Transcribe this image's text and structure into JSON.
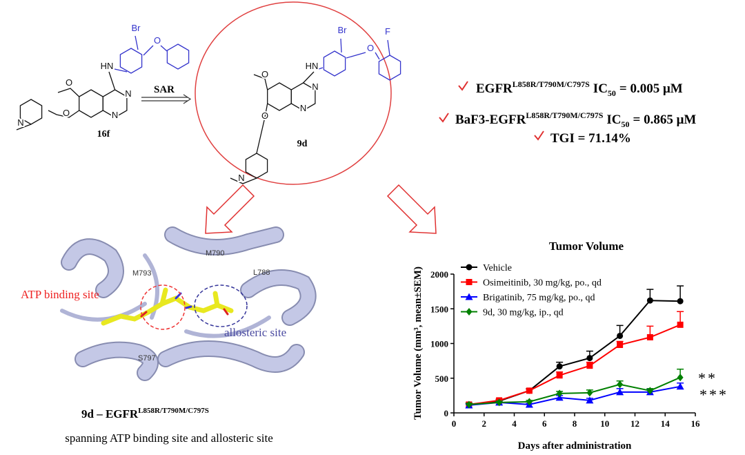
{
  "scheme": {
    "lead": {
      "label": "16f",
      "atoms": [
        "Br",
        "O",
        "HN",
        "N",
        "N",
        "O",
        "O",
        "N"
      ]
    },
    "arrow_label": "SAR",
    "hit": {
      "label": "9d",
      "atoms": [
        "Br",
        "F",
        "O",
        "HN",
        "N",
        "N",
        "O",
        "O",
        "N"
      ]
    }
  },
  "results": [
    {
      "prefix": "EGFR",
      "superscript": "L858R/T790M/C797S",
      "metric": "IC",
      "subscript": "50",
      "value": "= 0.005 μM"
    },
    {
      "prefix": "BaF3-EGFR",
      "superscript": "L858R/T790M/C797S",
      "metric": "IC",
      "subscript": "50",
      "value": "= 0.865 μM"
    },
    {
      "prefix": "TGI = 71.14%"
    }
  ],
  "docking": {
    "residues": [
      "M790",
      "M793",
      "L788",
      "S797"
    ],
    "atp_site": "ATP binding site",
    "allosteric_site": "allosteric site",
    "caption_compound": "9d – EGFR",
    "caption_superscript": "L858R/T790M/C797S",
    "caption": "spanning ATP binding site and allosteric site"
  },
  "chart_data": {
    "type": "line",
    "title": "Tumor Volume",
    "x_label": "Days after administration",
    "y_label": "Tumor Volume (mm³,  mean±SEM)",
    "x": [
      1,
      3,
      5,
      7,
      9,
      11,
      13,
      15
    ],
    "series": [
      {
        "name": "Vehicle",
        "color": "#000000",
        "marker": "circle",
        "values": [
          120,
          170,
          320,
          670,
          790,
          1110,
          1620,
          1610
        ],
        "errors": [
          20,
          20,
          30,
          60,
          100,
          150,
          160,
          220
        ]
      },
      {
        "name": "Osimeitinib, 30 mg/kg, po., qd",
        "color": "#ff0000",
        "marker": "square",
        "values": [
          120,
          180,
          320,
          540,
          680,
          980,
          1090,
          1270
        ],
        "errors": [
          20,
          20,
          20,
          50,
          50,
          50,
          160,
          190
        ]
      },
      {
        "name": "Brigatinib, 75 mg/kg,  po., qd",
        "color": "#0000ff",
        "marker": "triangle",
        "values": [
          110,
          150,
          120,
          220,
          180,
          300,
          300,
          380
        ],
        "errors": [
          15,
          15,
          15,
          30,
          30,
          50,
          40,
          50
        ]
      },
      {
        "name": "9d, 30 mg/kg, ip., qd",
        "color": "#008000",
        "marker": "diamond",
        "values": [
          120,
          150,
          160,
          280,
          290,
          410,
          320,
          510
        ],
        "errors": [
          20,
          20,
          20,
          30,
          40,
          50,
          30,
          120
        ]
      }
    ],
    "annotations": [
      "**",
      "***"
    ],
    "xlim": [
      0,
      16
    ],
    "xticks": [
      0,
      2,
      4,
      6,
      8,
      10,
      12,
      14,
      16
    ],
    "ylim": [
      0,
      2000
    ],
    "yticks": [
      0,
      500,
      1000,
      1500,
      2000
    ],
    "grid": false,
    "legend": "upper-left"
  }
}
